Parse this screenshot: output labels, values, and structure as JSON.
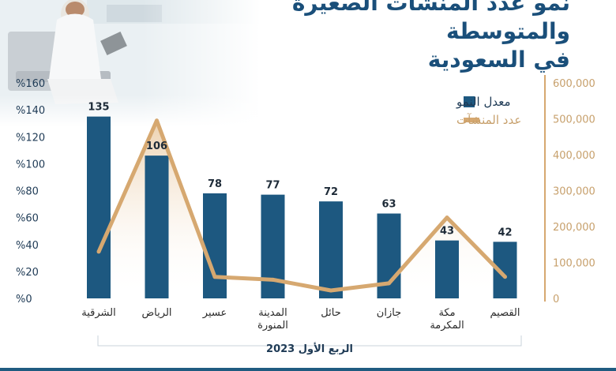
{
  "header": {
    "title_line1": "نمو عدد المنشآت الصغيرة والمتوسطة",
    "title_line2": "في السعودية"
  },
  "colors": {
    "bar": "#1d5880",
    "line": "#d6a870",
    "title": "#1a4f7a",
    "left_axis_text": "#1e3a55",
    "right_axis_text": "#c7a06c"
  },
  "chart_data": {
    "type": "bar",
    "categories": [
      "الشرقية",
      "الرياض",
      "عسير",
      "المدينة المنورة",
      "حائل",
      "جازان",
      "مكة المكرمة",
      "القصيم"
    ],
    "category_lines": [
      [
        "الشرقية"
      ],
      [
        "الرياض"
      ],
      [
        "عسير"
      ],
      [
        "المدينة",
        "المنورة"
      ],
      [
        "حائل"
      ],
      [
        "جازان"
      ],
      [
        "مكة",
        "المكرمة"
      ],
      [
        "القصيم"
      ]
    ],
    "series": [
      {
        "name": "معدل النمو",
        "type": "bar",
        "axis": "left",
        "values": [
          135,
          106,
          78,
          77,
          72,
          63,
          43,
          42
        ],
        "labels": [
          "135",
          "106",
          "78",
          "77",
          "72",
          "63",
          "43",
          "42"
        ]
      },
      {
        "name": "عدد المنشآت",
        "type": "line",
        "axis": "right",
        "values": [
          130000,
          495000,
          60000,
          52000,
          22000,
          42000,
          225000,
          60000
        ]
      }
    ],
    "left_axis": {
      "ylim": [
        0,
        160
      ],
      "ticks": [
        0,
        20,
        40,
        60,
        80,
        100,
        120,
        140,
        160
      ],
      "tick_labels": [
        "%0",
        "%20",
        "%40",
        "%60",
        "%80",
        "%100",
        "%120",
        "%140",
        "%160"
      ]
    },
    "right_axis": {
      "ylim": [
        0,
        600000
      ],
      "ticks": [
        0,
        100000,
        200000,
        300000,
        400000,
        500000,
        600000
      ],
      "tick_labels": [
        "0",
        "100,000",
        "200,000",
        "300,000",
        "400,000",
        "500,000",
        "600,000"
      ]
    },
    "xlabel": "الربع الأول 2023",
    "grid": false,
    "legend_position": "top-right"
  }
}
